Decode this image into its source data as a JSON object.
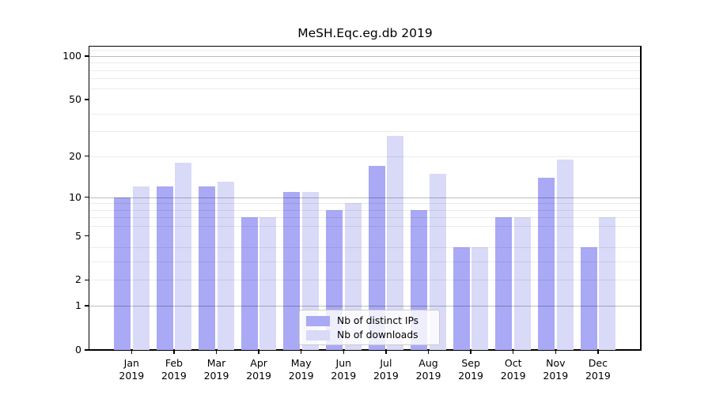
{
  "title": "MeSH.Eqc.eg.db 2019",
  "chart_data": {
    "type": "bar",
    "title": "MeSH.Eqc.eg.db 2019",
    "categories": [
      {
        "month": "Jan",
        "year": "2019"
      },
      {
        "month": "Feb",
        "year": "2019"
      },
      {
        "month": "Mar",
        "year": "2019"
      },
      {
        "month": "Apr",
        "year": "2019"
      },
      {
        "month": "May",
        "year": "2019"
      },
      {
        "month": "Jun",
        "year": "2019"
      },
      {
        "month": "Jul",
        "year": "2019"
      },
      {
        "month": "Aug",
        "year": "2019"
      },
      {
        "month": "Sep",
        "year": "2019"
      },
      {
        "month": "Oct",
        "year": "2019"
      },
      {
        "month": "Nov",
        "year": "2019"
      },
      {
        "month": "Dec",
        "year": "2019"
      }
    ],
    "series": [
      {
        "name": "Nb of distinct IPs",
        "color": "#a9a9f5",
        "values": [
          10,
          12,
          12,
          7,
          11,
          8,
          17,
          8,
          4,
          7,
          14,
          4
        ]
      },
      {
        "name": "Nb of downloads",
        "color": "#d9d9f8",
        "values": [
          12,
          18,
          13,
          7,
          11,
          9,
          28,
          15,
          4,
          7,
          19,
          7
        ]
      }
    ],
    "xlabel": "",
    "ylabel": "",
    "yscale": "log1p",
    "ylim": [
      0,
      115
    ],
    "ytick_values": [
      0,
      1,
      2,
      5,
      10,
      20,
      50,
      100
    ],
    "ytick_labels": [
      "0",
      "1",
      "2",
      "5",
      "10",
      "20",
      "50",
      "100"
    ],
    "major_grid_values": [
      1,
      10,
      100
    ],
    "minor_grid_values": [
      2,
      3,
      4,
      6,
      7,
      8,
      9,
      20,
      30,
      40,
      60,
      70,
      80,
      90,
      110
    ],
    "grid": true,
    "legend_position": "lower center"
  },
  "colors": {
    "background": "#ffffff",
    "spine": "#000000",
    "major_grid": "#bdbdbd",
    "minor_grid": "#ebebeb",
    "legend_border": "#cccccc"
  }
}
